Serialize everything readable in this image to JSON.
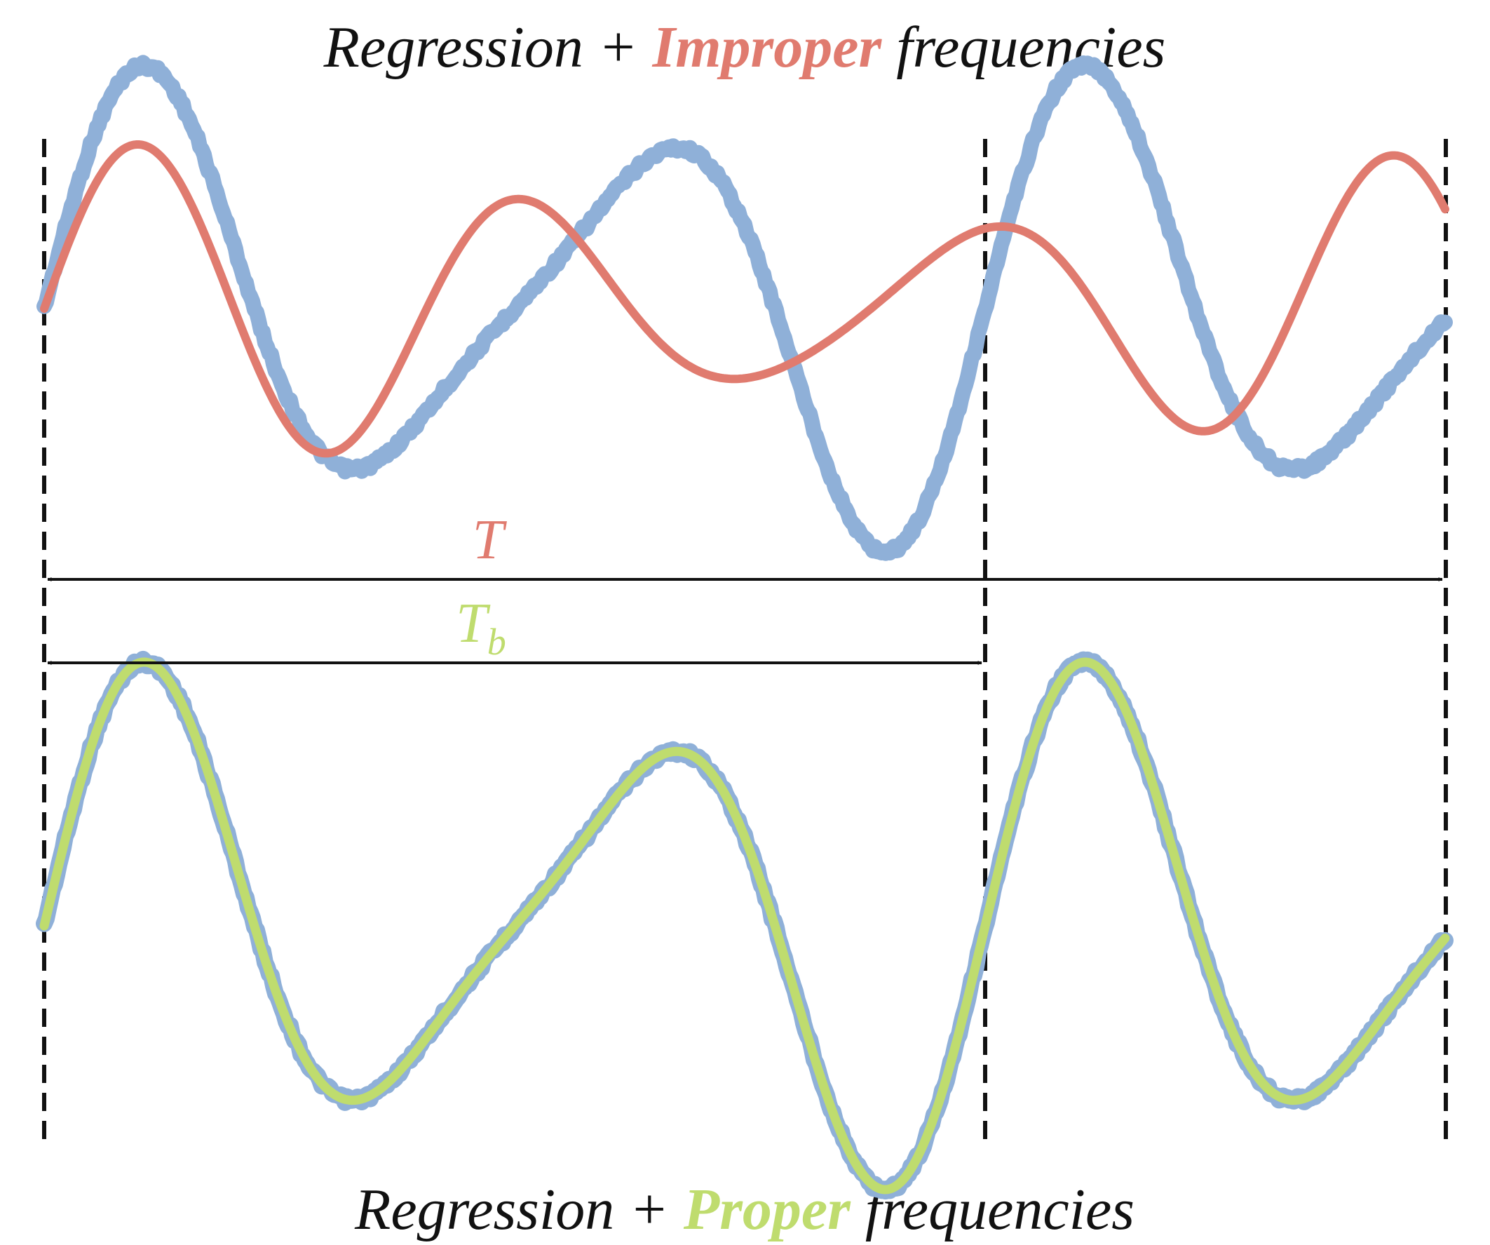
{
  "top_title": {
    "prefix": "Regression + ",
    "highlight": "Improper",
    "suffix": " frequencies",
    "highlight_color": "#e07b6f"
  },
  "bottom_title": {
    "prefix": "Regression + ",
    "highlight": "Proper",
    "suffix": " frequencies",
    "highlight_color": "#bfdc6e"
  },
  "labels": {
    "T": "T",
    "T_color": "#e07b6f",
    "Tb_main": "T",
    "Tb_sub": "b",
    "Tb_color": "#bfdc6e"
  },
  "colors": {
    "signal": "#8fb0d8",
    "improper_fit": "#e07b6f",
    "proper_fit": "#bfdc6e",
    "guides": "#111111"
  }
}
